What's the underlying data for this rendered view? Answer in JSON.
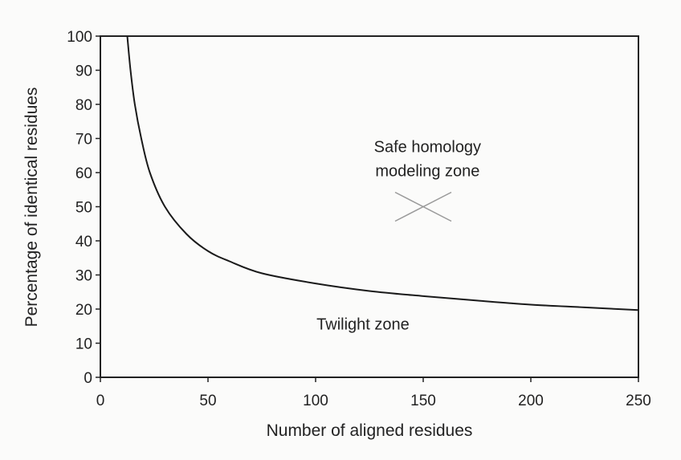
{
  "chart_data": {
    "type": "line",
    "title": "",
    "xlabel": "Number of aligned residues",
    "ylabel": "Percentage of identical residues",
    "xlim": [
      0,
      250
    ],
    "ylim": [
      0,
      100
    ],
    "x_ticks": [
      0,
      50,
      100,
      150,
      200,
      250
    ],
    "y_ticks": [
      0,
      10,
      20,
      30,
      40,
      50,
      60,
      70,
      80,
      90,
      100
    ],
    "grid": false,
    "legend": "none",
    "series": [
      {
        "points": [
          [
            12.5,
            100
          ],
          [
            14,
            90
          ],
          [
            16,
            80
          ],
          [
            19,
            70
          ],
          [
            23,
            60
          ],
          [
            30,
            50
          ],
          [
            40,
            42
          ],
          [
            50,
            37
          ],
          [
            60,
            34
          ],
          [
            75,
            30.5
          ],
          [
            100,
            27.5
          ],
          [
            125,
            25.3
          ],
          [
            150,
            23.8
          ],
          [
            175,
            22.5
          ],
          [
            200,
            21.3
          ],
          [
            225,
            20.5
          ],
          [
            250,
            19.7
          ]
        ]
      }
    ],
    "annotations": [
      {
        "text": "Safe homology",
        "x": 152,
        "y": 66
      },
      {
        "text": "modeling zone",
        "x": 152,
        "y": 59
      },
      {
        "text": "Twilight zone",
        "x": 122,
        "y": 14
      }
    ],
    "marker": {
      "type": "x",
      "x": 150,
      "y": 50
    },
    "colors": {
      "line": "#1a1a1a",
      "axis": "#222222",
      "marker": "#9a9a9a"
    }
  }
}
